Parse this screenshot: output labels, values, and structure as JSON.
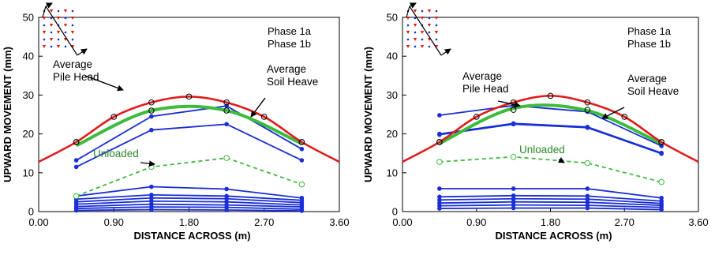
{
  "chart_data": [
    {
      "type": "line",
      "title": "",
      "xlabel": "DISTANCE ACROSS  (m)",
      "ylabel": "UPWARD MOVEMENT  (mm)",
      "xlim": [
        0,
        3.6
      ],
      "ylim": [
        0,
        50
      ],
      "x_ticks": [
        "0.00",
        "0.90",
        "1.80",
        "2.70",
        "3.60"
      ],
      "y_ticks": [
        "0",
        "10",
        "20",
        "30",
        "40",
        "50"
      ],
      "legend_items": [
        "Phase 1a",
        "Phase 1b"
      ],
      "annotations": {
        "pile_head": [
          "Average",
          "Pile Head"
        ],
        "soil_heave": [
          "Average",
          "Soil Heave"
        ],
        "unloaded": "Unloaded"
      },
      "colors": {
        "pile_head": "#e01b1b",
        "soil_heave": "#3dbb3d",
        "unloaded": "#3dbb3d",
        "piles": "#1a2fd6"
      },
      "series": [
        {
          "role": "pile_head",
          "x": [
            0,
            0.45,
            0.9,
            1.35,
            1.8,
            2.25,
            2.7,
            3.15,
            3.6
          ],
          "y": [
            12.8,
            17.9,
            24.4,
            28.1,
            29.6,
            28.1,
            24.4,
            17.9,
            12.8
          ],
          "markers_at": [
            0.45,
            0.9,
            1.35,
            1.8,
            2.25,
            2.7,
            3.15
          ]
        },
        {
          "role": "soil_heave",
          "x": [
            0.45,
            1.35,
            2.25,
            3.15
          ],
          "y": [
            17,
            26,
            26,
            17.5
          ],
          "smooth": true
        },
        {
          "role": "soil_heave_points",
          "x": [
            0.45,
            1.35,
            2.25,
            3.15
          ],
          "y": [
            17.9,
            26,
            26,
            17.9
          ]
        },
        {
          "role": "unloaded",
          "x": [
            0.45,
            1.35,
            2.25,
            3.15
          ],
          "y": [
            4,
            11.5,
            13.8,
            7
          ]
        },
        {
          "role": "pile",
          "x": [
            0.45,
            1.35,
            2.25,
            3.15
          ],
          "y": [
            13.2,
            24.5,
            27.2,
            16.1
          ]
        },
        {
          "role": "pile",
          "x": [
            0.45,
            1.35,
            2.25,
            3.15
          ],
          "y": [
            11.5,
            21,
            22.5,
            13.2
          ]
        },
        {
          "role": "pile",
          "x": [
            0.45,
            1.35,
            2.25,
            3.15
          ],
          "y": [
            4,
            6.4,
            5.8,
            3.5
          ]
        },
        {
          "role": "pile",
          "x": [
            0.45,
            1.35,
            2.25,
            3.15
          ],
          "y": [
            3.2,
            4.3,
            4,
            2.9
          ]
        },
        {
          "role": "pile",
          "x": [
            0.45,
            1.35,
            2.25,
            3.15
          ],
          "y": [
            2.5,
            3.5,
            3.3,
            2.3
          ]
        },
        {
          "role": "pile",
          "x": [
            0.45,
            1.35,
            2.25,
            3.15
          ],
          "y": [
            1.9,
            2.7,
            2.5,
            1.7
          ]
        },
        {
          "role": "pile",
          "x": [
            0.45,
            1.35,
            2.25,
            3.15
          ],
          "y": [
            1.3,
            1.9,
            1.7,
            1.2
          ]
        },
        {
          "role": "pile",
          "x": [
            0.45,
            1.35,
            2.25,
            3.15
          ],
          "y": [
            0.8,
            1.2,
            1.1,
            0.6
          ]
        },
        {
          "role": "pile",
          "x": [
            0.45,
            1.35,
            2.25,
            3.15
          ],
          "y": [
            0.3,
            0.5,
            0.4,
            0.2
          ]
        }
      ]
    },
    {
      "type": "line",
      "title": "",
      "xlabel": "DISTANCE ACROSS  (m)",
      "ylabel": "UPWARD MOVEMENT  (mm)",
      "xlim": [
        0,
        3.6
      ],
      "ylim": [
        0,
        50
      ],
      "x_ticks": [
        "0.00",
        "0.90",
        "1.80",
        "2.70",
        "3.60"
      ],
      "y_ticks": [
        "0",
        "10",
        "20",
        "30",
        "40",
        "50"
      ],
      "legend_items": [
        "Phase 1a",
        "Phase 1b"
      ],
      "annotations": {
        "pile_head": [
          "Average",
          "Pile Head"
        ],
        "soil_heave": [
          "Average",
          "Soil Heave"
        ],
        "unloaded": "Unloaded"
      },
      "colors": {
        "pile_head": "#e01b1b",
        "soil_heave": "#3dbb3d",
        "unloaded": "#3dbb3d",
        "piles": "#1a2fd6"
      },
      "series": [
        {
          "role": "pile_head",
          "x": [
            0,
            0.45,
            0.9,
            1.35,
            1.8,
            2.25,
            2.7,
            3.15,
            3.6
          ],
          "y": [
            12.8,
            17.9,
            24.4,
            28.1,
            29.8,
            28.1,
            24.4,
            17.9,
            12.8
          ],
          "markers_at": [
            0.45,
            0.9,
            1.35,
            1.8,
            2.25,
            2.7,
            3.15
          ]
        },
        {
          "role": "soil_heave",
          "x": [
            0.45,
            1.35,
            2.25,
            3.15
          ],
          "y": [
            17.5,
            26.6,
            26,
            17.5
          ],
          "smooth": true
        },
        {
          "role": "soil_heave_points",
          "x": [
            0.45,
            1.35,
            2.25,
            3.15
          ],
          "y": [
            17.9,
            26.2,
            26.2,
            17.9
          ]
        },
        {
          "role": "unloaded",
          "x": [
            0.45,
            1.35,
            2.25,
            3.15
          ],
          "y": [
            12.8,
            14.1,
            12.5,
            7.6
          ]
        },
        {
          "role": "pile",
          "x": [
            0.45,
            1.35,
            2.25,
            3.15
          ],
          "y": [
            24.8,
            27.3,
            25.7,
            16.9
          ]
        },
        {
          "role": "pile",
          "x": [
            0.45,
            1.35,
            2.25,
            3.15
          ],
          "y": [
            20,
            22.7,
            21.8,
            15.1
          ]
        },
        {
          "role": "pile",
          "x": [
            0.45,
            1.35,
            2.25,
            3.15
          ],
          "y": [
            19.8,
            22.5,
            21.6,
            14.9
          ]
        },
        {
          "role": "pile",
          "x": [
            0.45,
            1.35,
            2.25,
            3.15
          ],
          "y": [
            5.9,
            5.9,
            5.9,
            3.5
          ]
        },
        {
          "role": "pile",
          "x": [
            0.45,
            1.35,
            2.25,
            3.15
          ],
          "y": [
            3.8,
            4.1,
            4,
            2.7
          ]
        },
        {
          "role": "pile",
          "x": [
            0.45,
            1.35,
            2.25,
            3.15
          ],
          "y": [
            3,
            3.3,
            3.2,
            2.1
          ]
        },
        {
          "role": "pile",
          "x": [
            0.45,
            1.35,
            2.25,
            3.15
          ],
          "y": [
            2.2,
            2.5,
            2.4,
            1.6
          ]
        },
        {
          "role": "pile",
          "x": [
            0.45,
            1.35,
            2.25,
            3.15
          ],
          "y": [
            1.5,
            1.7,
            1.6,
            1.1
          ]
        },
        {
          "role": "pile",
          "x": [
            0.45,
            1.35,
            2.25,
            3.15
          ],
          "y": [
            0.8,
            0.9,
            0.9,
            0.5
          ]
        }
      ]
    }
  ]
}
